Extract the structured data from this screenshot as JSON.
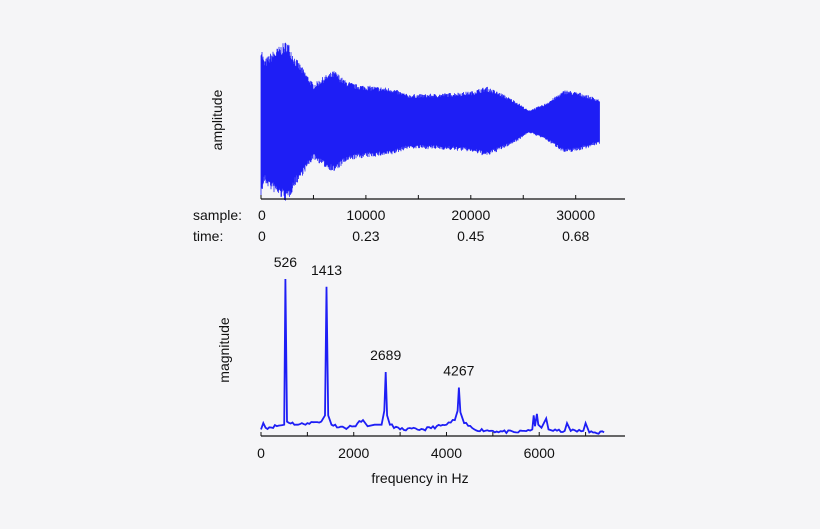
{
  "colors": {
    "background": "#f5f5f7",
    "series": "#1e1ef5",
    "axis": "#111111"
  },
  "chart_data": [
    {
      "type": "line",
      "ylabel": "amplitude",
      "xlabel": "",
      "x_tick_rows": [
        {
          "label": "sample:",
          "ticks": [
            "0",
            "10000",
            "20000",
            "30000"
          ]
        },
        {
          "label": "time:",
          "ticks": [
            "0",
            "0.23",
            "0.45",
            "0.68"
          ]
        }
      ],
      "x_tick_values": [
        0,
        10000,
        20000,
        30000
      ],
      "xlim": [
        0,
        34700
      ],
      "minor_tick_step": 5000,
      "grid": false,
      "signal_extent": [
        0,
        32300
      ],
      "envelope": {
        "sample": [
          0,
          300,
          1000,
          2500,
          3200,
          4000,
          5000,
          6000,
          7000,
          8000,
          9000,
          11000,
          12500,
          14000,
          17000,
          20000,
          21500,
          23000,
          24500,
          25500,
          27000,
          29000,
          30500,
          32300
        ],
        "amplitude": [
          0.95,
          0.75,
          0.85,
          1.0,
          0.8,
          0.65,
          0.45,
          0.55,
          0.62,
          0.5,
          0.45,
          0.42,
          0.4,
          0.32,
          0.33,
          0.36,
          0.42,
          0.33,
          0.22,
          0.12,
          0.2,
          0.38,
          0.34,
          0.26
        ]
      }
    },
    {
      "type": "line",
      "xlabel": "frequency in Hz",
      "ylabel": "magnitude",
      "x_ticks": [
        0,
        2000,
        4000,
        6000
      ],
      "x_tick_labels": [
        "0",
        "2000",
        "4000",
        "6000"
      ],
      "xlim": [
        0,
        7850
      ],
      "minor_tick_step": 1000,
      "grid": false,
      "annotations": [
        {
          "text": "526",
          "x": 526,
          "y": 1.0
        },
        {
          "text": "1413",
          "x": 1413,
          "y": 0.95
        },
        {
          "text": "2689",
          "x": 2689,
          "y": 0.4
        },
        {
          "text": "4267",
          "x": 4267,
          "y": 0.3
        }
      ],
      "x": [
        0,
        50,
        100,
        500,
        526,
        560,
        800,
        1000,
        1300,
        1380,
        1413,
        1450,
        1520,
        1800,
        2000,
        2200,
        2300,
        2450,
        2600,
        2660,
        2689,
        2720,
        2780,
        3000,
        3500,
        4000,
        4180,
        4240,
        4267,
        4300,
        4380,
        4600,
        5000,
        5500,
        5850,
        5880,
        5910,
        5950,
        5980,
        6050,
        6150,
        6200,
        6300,
        6550,
        6600,
        6680,
        6950,
        7000,
        7080,
        7400
      ],
      "y": [
        0.03,
        0.07,
        0.04,
        0.06,
        1.0,
        0.08,
        0.06,
        0.07,
        0.08,
        0.12,
        0.95,
        0.12,
        0.06,
        0.04,
        0.05,
        0.09,
        0.05,
        0.06,
        0.06,
        0.15,
        0.4,
        0.12,
        0.06,
        0.03,
        0.03,
        0.06,
        0.09,
        0.15,
        0.3,
        0.14,
        0.07,
        0.03,
        0.02,
        0.01,
        0.03,
        0.12,
        0.05,
        0.13,
        0.06,
        0.04,
        0.1,
        0.03,
        0.02,
        0.02,
        0.07,
        0.02,
        0.02,
        0.07,
        0.01,
        0.01
      ]
    }
  ]
}
